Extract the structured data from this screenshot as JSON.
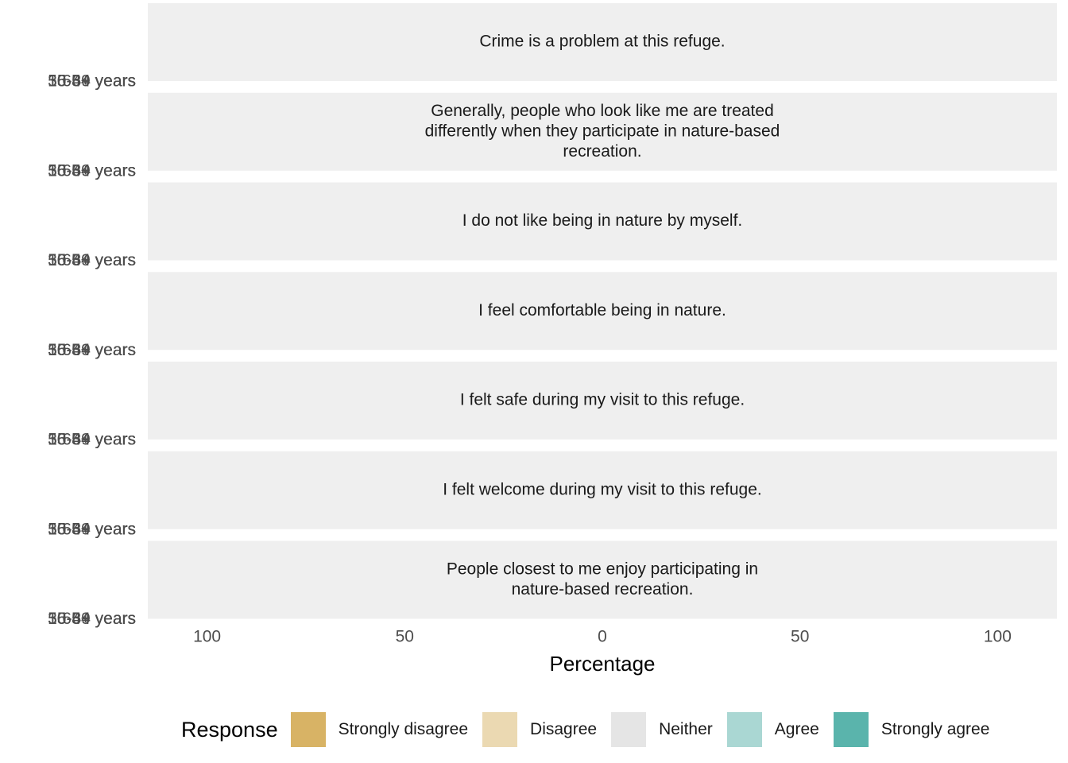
{
  "chart_data": {
    "type": "bar",
    "layout": "diverging stacked, faceted by statement",
    "xlabel": "Percentage",
    "x_ticks": [
      "100",
      "50",
      "0",
      "50",
      "100"
    ],
    "xlim": [
      -115,
      115
    ],
    "facets": [
      "Crime is a problem at this refuge.",
      "Generally, people who look like me are treated differently when they participate in nature-based recreation.",
      "I do not like being in nature by myself.",
      "I feel comfortable being in nature.",
      "I felt safe during my visit to this refuge.",
      "I felt welcome during my visit to this refuge.",
      "People closest to me enjoy participating in nature-based recreation."
    ],
    "facet_lines": [
      [
        "Crime is a problem at this refuge."
      ],
      [
        "Generally, people who look like me are treated",
        "differently when they participate in nature-based",
        "recreation."
      ],
      [
        "I do not like being in nature by myself."
      ],
      [
        "I feel comfortable being in nature."
      ],
      [
        "I felt safe during my visit to this refuge."
      ],
      [
        "I felt welcome during my visit to this refuge."
      ],
      [
        "People closest to me enjoy participating in",
        "nature-based recreation."
      ]
    ],
    "y_labels_overlapping": [
      "16-34 years",
      "35-49 years",
      "50-64 years",
      "65+ years"
    ],
    "y_label_visible": "56-64 years",
    "legend": {
      "title": "Response",
      "position": "bottom",
      "entries": [
        {
          "label": "Strongly disagree",
          "color": "#D8B365"
        },
        {
          "label": "Disagree",
          "color": "#EBD9B2"
        },
        {
          "label": "Neither",
          "color": "#E5E5E5"
        },
        {
          "label": "Agree",
          "color": "#AAD7D3"
        },
        {
          "label": "Strongly agree",
          "color": "#5AB4AC"
        }
      ]
    },
    "series": [],
    "grid": false,
    "panel_background": "#EFEFEF"
  }
}
